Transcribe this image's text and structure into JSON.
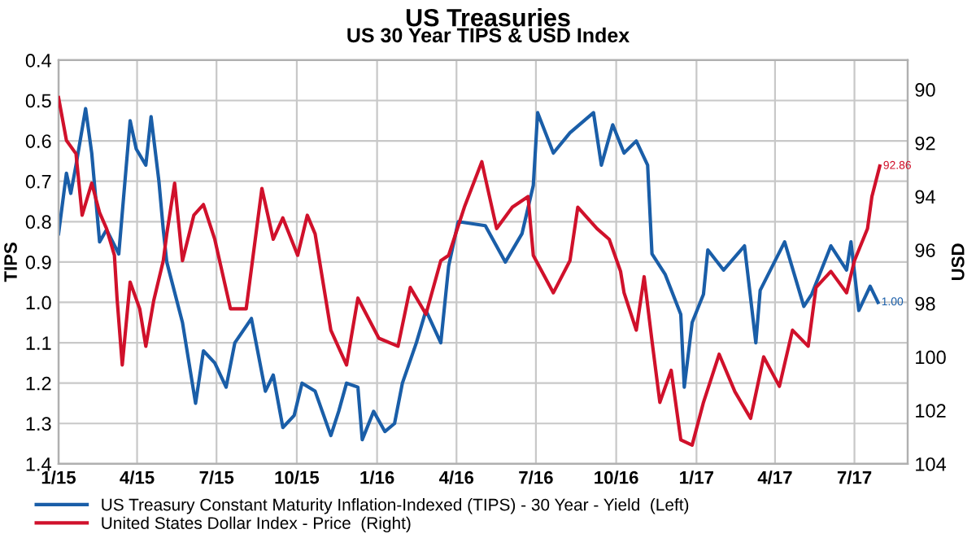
{
  "chart_data": {
    "type": "line",
    "title": "US Treasuries",
    "subtitle": "US 30 Year TIPS & USD Index",
    "ylabel": "TIPS",
    "y2label": "USD",
    "xlim": [
      "2015-01-01",
      "2017-08-31"
    ],
    "xticks": [
      {
        "value": "2015-01-01",
        "label": "1/15"
      },
      {
        "value": "2015-04-01",
        "label": "4/15"
      },
      {
        "value": "2015-07-01",
        "label": "7/15"
      },
      {
        "value": "2015-10-01",
        "label": "10/15"
      },
      {
        "value": "2016-01-01",
        "label": "1/16"
      },
      {
        "value": "2016-04-01",
        "label": "4/16"
      },
      {
        "value": "2016-07-01",
        "label": "7/16"
      },
      {
        "value": "2016-10-01",
        "label": "10/16"
      },
      {
        "value": "2017-01-01",
        "label": "1/17"
      },
      {
        "value": "2017-04-01",
        "label": "4/17"
      },
      {
        "value": "2017-07-01",
        "label": "7/17"
      }
    ],
    "ylim": [
      1.4,
      0.4
    ],
    "yticks": [
      0.4,
      0.5,
      0.6,
      0.7,
      0.8,
      0.9,
      {
        "value": 1.0,
        "label": "1.0"
      },
      1.1,
      1.2,
      1.3,
      1.4
    ],
    "y2lim": [
      104,
      88.9
    ],
    "y2ticks": [
      90,
      92,
      94,
      96,
      98,
      100,
      102,
      104
    ],
    "grid": true,
    "legend": "bottom",
    "marker": "none",
    "line_style": "solid",
    "series": [
      {
        "name": "US Treasury Constant Maturity Inflation-Indexed (TIPS) - 30 Year - Yield  (Left)",
        "color": "#1a5ea8",
        "x": [
          "2015-01-01",
          "2015-01-10",
          "2015-01-15",
          "2015-01-21",
          "2015-02-01",
          "2015-02-08",
          "2015-02-17",
          "2015-02-25",
          "2015-03-11",
          "2015-03-24",
          "2015-03-31",
          "2015-04-11",
          "2015-04-17",
          "2015-04-26",
          "2015-05-01",
          "2015-05-05",
          "2015-05-23",
          "2015-06-07",
          "2015-06-16",
          "2015-06-29",
          "2015-07-12",
          "2015-07-22",
          "2015-08-10",
          "2015-08-26",
          "2015-09-04",
          "2015-09-15",
          "2015-09-28",
          "2015-10-07",
          "2015-10-22",
          "2015-11-09",
          "2015-11-18",
          "2015-11-27",
          "2015-12-10",
          "2015-12-15",
          "2015-12-28",
          "2016-01-10",
          "2016-01-21",
          "2016-01-30",
          "2016-02-15",
          "2016-02-26",
          "2016-03-14",
          "2016-03-23",
          "2016-04-03",
          "2016-05-04",
          "2016-05-27",
          "2016-06-15",
          "2016-06-28",
          "2016-07-03",
          "2016-07-21",
          "2016-08-09",
          "2016-09-05",
          "2016-09-14",
          "2016-09-27",
          "2016-10-10",
          "2016-10-24",
          "2016-11-06",
          "2016-11-11",
          "2016-11-26",
          "2016-12-14",
          "2016-12-18",
          "2016-12-27",
          "2017-01-09",
          "2017-01-14",
          "2017-02-01",
          "2017-02-25",
          "2017-03-10",
          "2017-03-15",
          "2017-04-12",
          "2017-05-04",
          "2017-05-13",
          "2017-06-04",
          "2017-06-22",
          "2017-06-27",
          "2017-07-06",
          "2017-07-19",
          "2017-07-28"
        ],
        "values": [
          0.83,
          0.68,
          0.73,
          0.66,
          0.52,
          0.63,
          0.85,
          0.82,
          0.88,
          0.55,
          0.62,
          0.66,
          0.54,
          0.7,
          0.82,
          0.9,
          1.05,
          1.25,
          1.12,
          1.15,
          1.21,
          1.1,
          1.04,
          1.22,
          1.18,
          1.31,
          1.28,
          1.2,
          1.22,
          1.33,
          1.27,
          1.2,
          1.21,
          1.34,
          1.27,
          1.32,
          1.3,
          1.2,
          1.1,
          1.02,
          1.1,
          0.91,
          0.8,
          0.81,
          0.9,
          0.83,
          0.71,
          0.53,
          0.63,
          0.58,
          0.53,
          0.66,
          0.56,
          0.63,
          0.6,
          0.66,
          0.88,
          0.93,
          1.03,
          1.21,
          1.05,
          0.98,
          0.87,
          0.92,
          0.86,
          1.1,
          0.97,
          0.85,
          1.01,
          0.98,
          0.86,
          0.92,
          0.85,
          1.02,
          0.96,
          1.0
        ],
        "value_labels": [
          null,
          null,
          null,
          null,
          null,
          null,
          null,
          null,
          null,
          null,
          null,
          null,
          null,
          null,
          null,
          null,
          null,
          null,
          null,
          null,
          null,
          null,
          null,
          null,
          null,
          null,
          null,
          null,
          null,
          null,
          null,
          null,
          null,
          null,
          null,
          null,
          null,
          null,
          null,
          null,
          null,
          null,
          null,
          null,
          null,
          null,
          null,
          null,
          null,
          null,
          null,
          null,
          null,
          null,
          null,
          null,
          null,
          null,
          null,
          null,
          null,
          null,
          null,
          null,
          null,
          null,
          null,
          null,
          null,
          null,
          null,
          null,
          null,
          null,
          null,
          "1.00"
        ]
      },
      {
        "name": "United States Dollar Index - Price  (Right)",
        "color": "#d0112b",
        "axis": "y2",
        "x": [
          "2015-01-01",
          "2015-01-10",
          "2015-01-21",
          "2015-01-28",
          "2015-02-08",
          "2015-02-17",
          "2015-02-25",
          "2015-03-06",
          "2015-03-09",
          "2015-03-15",
          "2015-03-24",
          "2015-04-04",
          "2015-04-11",
          "2015-04-20",
          "2015-05-01",
          "2015-05-05",
          "2015-05-14",
          "2015-05-23",
          "2015-06-05",
          "2015-06-16",
          "2015-06-29",
          "2015-07-17",
          "2015-08-04",
          "2015-08-22",
          "2015-09-04",
          "2015-09-15",
          "2015-10-02",
          "2015-10-13",
          "2015-10-22",
          "2015-11-09",
          "2015-11-27",
          "2015-12-10",
          "2016-01-03",
          "2016-01-25",
          "2016-02-08",
          "2016-02-26",
          "2016-03-14",
          "2016-03-23",
          "2016-04-10",
          "2016-04-30",
          "2016-05-04",
          "2016-05-17",
          "2016-06-04",
          "2016-06-22",
          "2016-06-28",
          "2016-07-21",
          "2016-08-09",
          "2016-08-18",
          "2016-09-09",
          "2016-09-23",
          "2016-10-06",
          "2016-10-10",
          "2016-10-24",
          "2016-11-02",
          "2016-11-11",
          "2016-11-20",
          "2016-12-03",
          "2016-12-14",
          "2016-12-27",
          "2017-01-09",
          "2017-01-27",
          "2017-02-14",
          "2017-03-04",
          "2017-03-19",
          "2017-04-06",
          "2017-04-21",
          "2017-05-09",
          "2017-05-18",
          "2017-06-04",
          "2017-06-22",
          "2017-07-01",
          "2017-07-16",
          "2017-07-21",
          "2017-07-30"
        ],
        "values": [
          90.3,
          91.9,
          92.4,
          94.7,
          93.5,
          94.6,
          95.2,
          96.2,
          97.8,
          100.3,
          97.2,
          98.2,
          99.6,
          97.9,
          96.4,
          95.4,
          93.5,
          96.4,
          94.7,
          94.3,
          95.6,
          98.2,
          98.2,
          93.7,
          95.6,
          94.8,
          96.2,
          94.7,
          95.4,
          99.0,
          100.3,
          97.8,
          99.3,
          99.6,
          97.4,
          98.4,
          96.4,
          96.2,
          94.4,
          92.7,
          93.3,
          95.2,
          94.4,
          94.0,
          96.2,
          97.6,
          96.4,
          94.4,
          95.2,
          95.6,
          96.8,
          97.6,
          99.0,
          97.0,
          99.4,
          101.7,
          100.5,
          103.1,
          103.3,
          101.7,
          99.9,
          101.3,
          102.3,
          100.0,
          101.1,
          99.0,
          99.6,
          97.4,
          96.8,
          97.6,
          96.4,
          95.2,
          94.0,
          92.86
        ],
        "value_labels": [
          null,
          null,
          null,
          null,
          null,
          null,
          null,
          null,
          null,
          null,
          null,
          null,
          null,
          null,
          null,
          null,
          null,
          null,
          null,
          null,
          null,
          null,
          null,
          null,
          null,
          null,
          null,
          null,
          null,
          null,
          null,
          null,
          null,
          null,
          null,
          null,
          null,
          null,
          null,
          null,
          null,
          null,
          null,
          null,
          null,
          null,
          null,
          null,
          null,
          null,
          null,
          null,
          null,
          null,
          null,
          null,
          null,
          null,
          null,
          null,
          null,
          null,
          null,
          null,
          null,
          null,
          null,
          null,
          null,
          null,
          null,
          null,
          null,
          "92.86"
        ]
      }
    ]
  }
}
